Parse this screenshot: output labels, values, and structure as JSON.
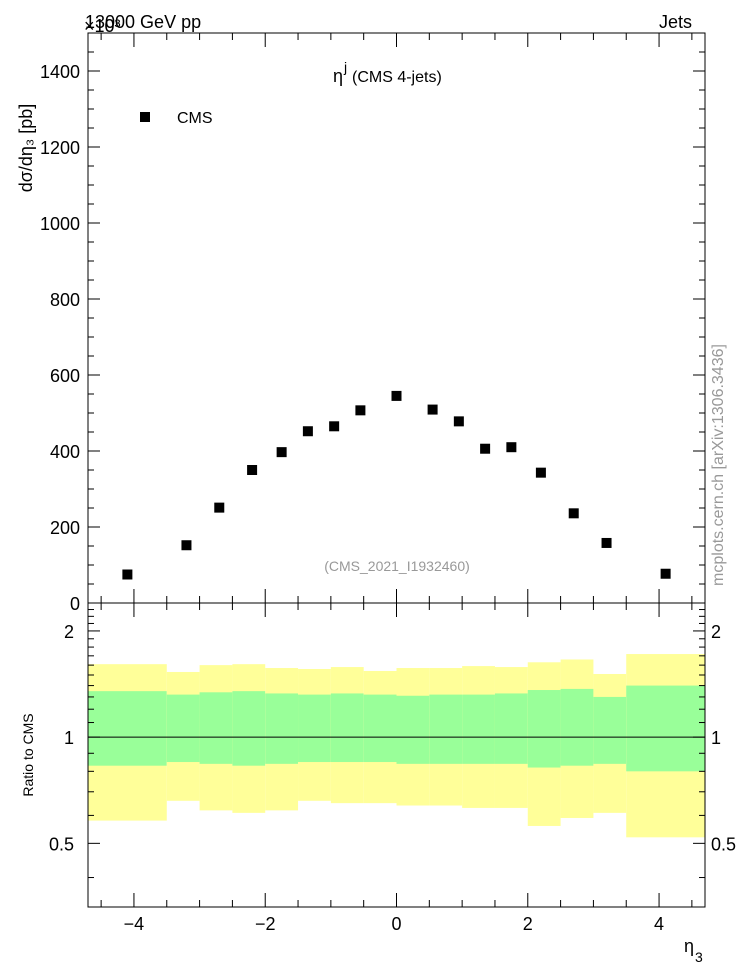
{
  "header": {
    "left": "13000 GeV pp",
    "right": "Jets",
    "exponent": "×10³"
  },
  "main_plot": {
    "title_main": "η",
    "title_sup": "j",
    "title_rest": " (CMS 4-jets)",
    "ylabel": "dσ/dη₃ [pb]",
    "legend_label": "CMS",
    "watermark": "(CMS_2021_I1932460)",
    "side_label": "mcplots.cern.ch [arXiv:1306.3436]"
  },
  "ratio_plot": {
    "ylabel": "Ratio to CMS",
    "xlabel": "η",
    "xlabel_sub": "3"
  },
  "colors": {
    "band_outer": "#ffff99",
    "band_inner": "#99ff99",
    "marker": "#000000",
    "watermark": "#999999"
  },
  "chart_data": [
    {
      "type": "scatter",
      "series": [
        {
          "name": "CMS",
          "x": [
            -4.1,
            -3.2,
            -2.7,
            -2.2,
            -1.75,
            -1.35,
            -0.95,
            -0.55,
            0.0,
            0.55,
            0.95,
            1.35,
            1.75,
            2.2,
            2.7,
            3.2,
            4.1
          ],
          "y": [
            75,
            152,
            251,
            350,
            397,
            452,
            465,
            507,
            545,
            509,
            478,
            406,
            410,
            343,
            236,
            158,
            77
          ]
        }
      ],
      "xlim": [
        -4.7,
        4.7
      ],
      "ylim": [
        0,
        1500
      ],
      "y_multiplier": 1000,
      "xticks": [
        -4,
        -2,
        0,
        2,
        4
      ],
      "yticks": [
        0,
        200,
        400,
        600,
        800,
        1000,
        1200,
        1400
      ],
      "ytick_labels": [
        "0",
        "200",
        "400",
        "600",
        "800",
        "1000",
        "1200",
        "1400"
      ],
      "legend": "top-left"
    },
    {
      "type": "area",
      "bins": [
        -4.7,
        -3.5,
        -3.0,
        -2.5,
        -2.0,
        -1.5,
        -1.0,
        -0.5,
        0.0,
        0.5,
        1.0,
        1.5,
        2.0,
        2.5,
        3.0,
        3.5,
        4.7
      ],
      "band_outer_low": [
        0.58,
        0.66,
        0.62,
        0.61,
        0.62,
        0.66,
        0.65,
        0.65,
        0.64,
        0.64,
        0.63,
        0.63,
        0.56,
        0.59,
        0.61,
        0.52
      ],
      "band_outer_high": [
        1.61,
        1.53,
        1.6,
        1.61,
        1.57,
        1.56,
        1.58,
        1.54,
        1.57,
        1.57,
        1.59,
        1.58,
        1.63,
        1.66,
        1.51,
        1.72
      ],
      "band_inner_low": [
        0.83,
        0.85,
        0.84,
        0.83,
        0.84,
        0.85,
        0.85,
        0.85,
        0.84,
        0.84,
        0.84,
        0.84,
        0.82,
        0.83,
        0.84,
        0.8
      ],
      "band_inner_high": [
        1.35,
        1.32,
        1.34,
        1.35,
        1.33,
        1.32,
        1.33,
        1.32,
        1.31,
        1.32,
        1.32,
        1.33,
        1.36,
        1.37,
        1.3,
        1.4
      ],
      "reference": 1,
      "xlim": [
        -4.7,
        4.7
      ],
      "ylim": [
        0.33,
        2.4
      ],
      "log_y": true,
      "yticks": [
        0.5,
        1,
        2
      ],
      "ytick_labels": [
        "0.5",
        "1",
        "2"
      ],
      "xticks": [
        -4,
        -2,
        0,
        2,
        4
      ],
      "xtick_labels": [
        "−4",
        "−2",
        "0",
        "2",
        "4"
      ]
    }
  ]
}
